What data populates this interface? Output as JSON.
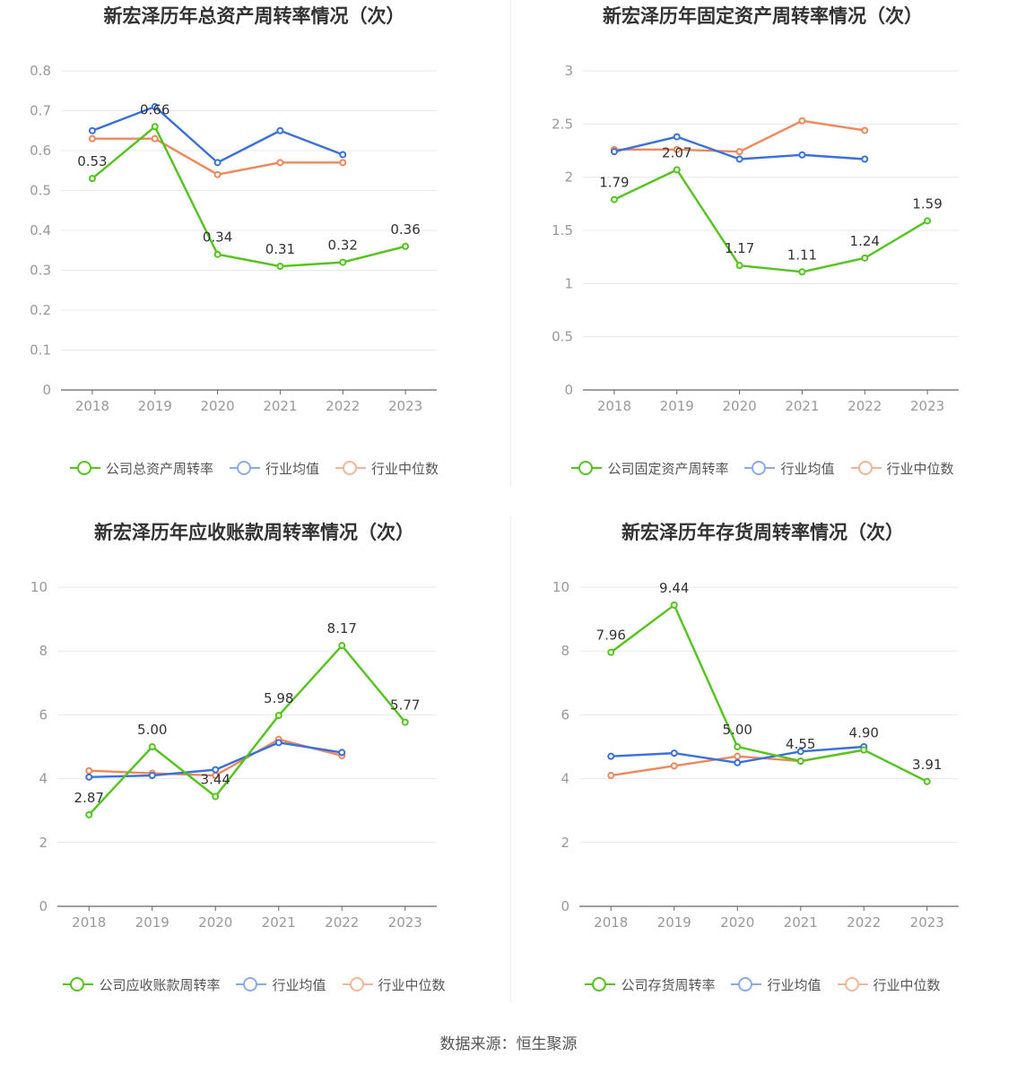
{
  "source": "数据来源：恒生聚源",
  "colors": {
    "company": "#52c41a",
    "average": "#3a6fe0",
    "median": "#f0875a"
  },
  "chart_data": [
    {
      "type": "line",
      "title": "新宏泽历年总资产周转率情况（次）",
      "categories": [
        "2018",
        "2019",
        "2020",
        "2021",
        "2022",
        "2023"
      ],
      "ylim": [
        0,
        0.8
      ],
      "yticks": [
        "0",
        "0.1",
        "0.2",
        "0.3",
        "0.4",
        "0.5",
        "0.6",
        "0.7",
        "0.8"
      ],
      "series": [
        {
          "name": "公司总资产周转率",
          "values": [
            0.53,
            0.66,
            0.34,
            0.31,
            0.32,
            0.36
          ],
          "labels": [
            "0.53",
            "0.66",
            "0.34",
            "0.31",
            "0.32",
            "0.36"
          ]
        },
        {
          "name": "行业均值",
          "values": [
            0.65,
            0.71,
            0.57,
            0.65,
            0.59,
            null
          ]
        },
        {
          "name": "行业中位数",
          "values": [
            0.63,
            0.63,
            0.54,
            0.57,
            0.57,
            null
          ]
        }
      ]
    },
    {
      "type": "line",
      "title": "新宏泽历年固定资产周转率情况（次）",
      "categories": [
        "2018",
        "2019",
        "2020",
        "2021",
        "2022",
        "2023"
      ],
      "ylim": [
        0,
        3
      ],
      "yticks": [
        "0",
        "0.5",
        "1",
        "1.5",
        "2",
        "2.5",
        "3"
      ],
      "series": [
        {
          "name": "公司固定资产周转率",
          "values": [
            1.79,
            2.07,
            1.17,
            1.11,
            1.24,
            1.59
          ],
          "labels": [
            "1.79",
            "2.07",
            "1.17",
            "1.11",
            "1.24",
            "1.59"
          ]
        },
        {
          "name": "行业均值",
          "values": [
            2.24,
            2.38,
            2.17,
            2.21,
            2.17,
            null
          ]
        },
        {
          "name": "行业中位数",
          "values": [
            2.26,
            2.26,
            2.24,
            2.53,
            2.44,
            null
          ]
        }
      ]
    },
    {
      "type": "line",
      "title": "新宏泽历年应收账款周转率情况（次）",
      "categories": [
        "2018",
        "2019",
        "2020",
        "2021",
        "2022",
        "2023"
      ],
      "ylim": [
        0,
        10
      ],
      "yticks": [
        "0",
        "2",
        "4",
        "6",
        "8",
        "10"
      ],
      "series": [
        {
          "name": "公司应收账款周转率",
          "values": [
            2.87,
            5.0,
            3.44,
            5.98,
            8.17,
            5.77
          ],
          "labels": [
            "2.87",
            "5.00",
            "3.44",
            "5.98",
            "8.17",
            "5.77"
          ]
        },
        {
          "name": "行业均值",
          "values": [
            4.05,
            4.1,
            4.28,
            5.13,
            4.82,
            null
          ]
        },
        {
          "name": "行业中位数",
          "values": [
            4.25,
            4.17,
            4.1,
            5.23,
            4.72,
            null
          ]
        }
      ]
    },
    {
      "type": "line",
      "title": "新宏泽历年存货周转率情况（次）",
      "categories": [
        "2018",
        "2019",
        "2020",
        "2021",
        "2022",
        "2023"
      ],
      "ylim": [
        0,
        10
      ],
      "yticks": [
        "0",
        "2",
        "4",
        "6",
        "8",
        "10"
      ],
      "series": [
        {
          "name": "公司存货周转率",
          "values": [
            7.96,
            9.44,
            5.0,
            4.55,
            4.9,
            3.91
          ],
          "labels": [
            "7.96",
            "9.44",
            "5.00",
            "4.55",
            "4.90",
            "3.91"
          ]
        },
        {
          "name": "行业均值",
          "values": [
            4.7,
            4.8,
            4.5,
            4.85,
            5.0,
            null
          ]
        },
        {
          "name": "行业中位数",
          "values": [
            4.1,
            4.4,
            4.7,
            4.55,
            4.9,
            null
          ]
        }
      ]
    }
  ]
}
